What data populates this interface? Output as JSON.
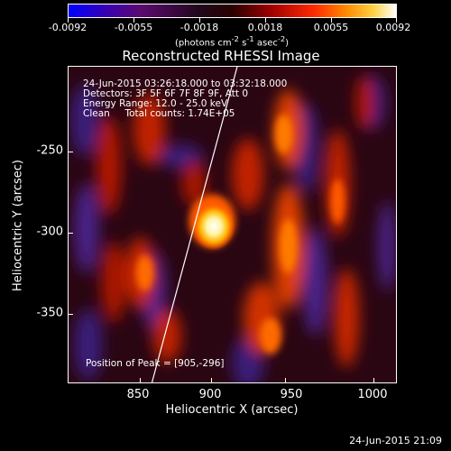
{
  "colorbar": {
    "ticks": [
      "-0.0092",
      "-0.0055",
      "-0.0018",
      "0.0018",
      "0.0055",
      "0.0092"
    ],
    "units_html": "(photons cm<sup>-2</sup> s<sup>-1</sup> asec<sup>-2</sup>)"
  },
  "title": "Reconstructed RHESSI Image",
  "info": {
    "line1": "24-Jun-2015 03:26:18.000 to 03:32:18.000",
    "line2": "Detectors: 3F 5F 6F 7F 8F 9F, Att 0",
    "line3": "Energy Range: 12.0 - 25.0 keV",
    "line4": "Clean     Total counts: 1.74E+05",
    "peak": "Position of Peak = [905,-296]"
  },
  "x_axis": {
    "label": "Heliocentric X (arcsec)",
    "ticks": [
      "850",
      "900",
      "950",
      "1000"
    ]
  },
  "y_axis": {
    "label": "Heliocentric Y (arcsec)",
    "ticks": [
      "-250",
      "-300",
      "-350"
    ]
  },
  "timestamp": "24-Jun-2015 21:09",
  "colors": {
    "background": "#000000",
    "foreground": "#ffffff"
  }
}
